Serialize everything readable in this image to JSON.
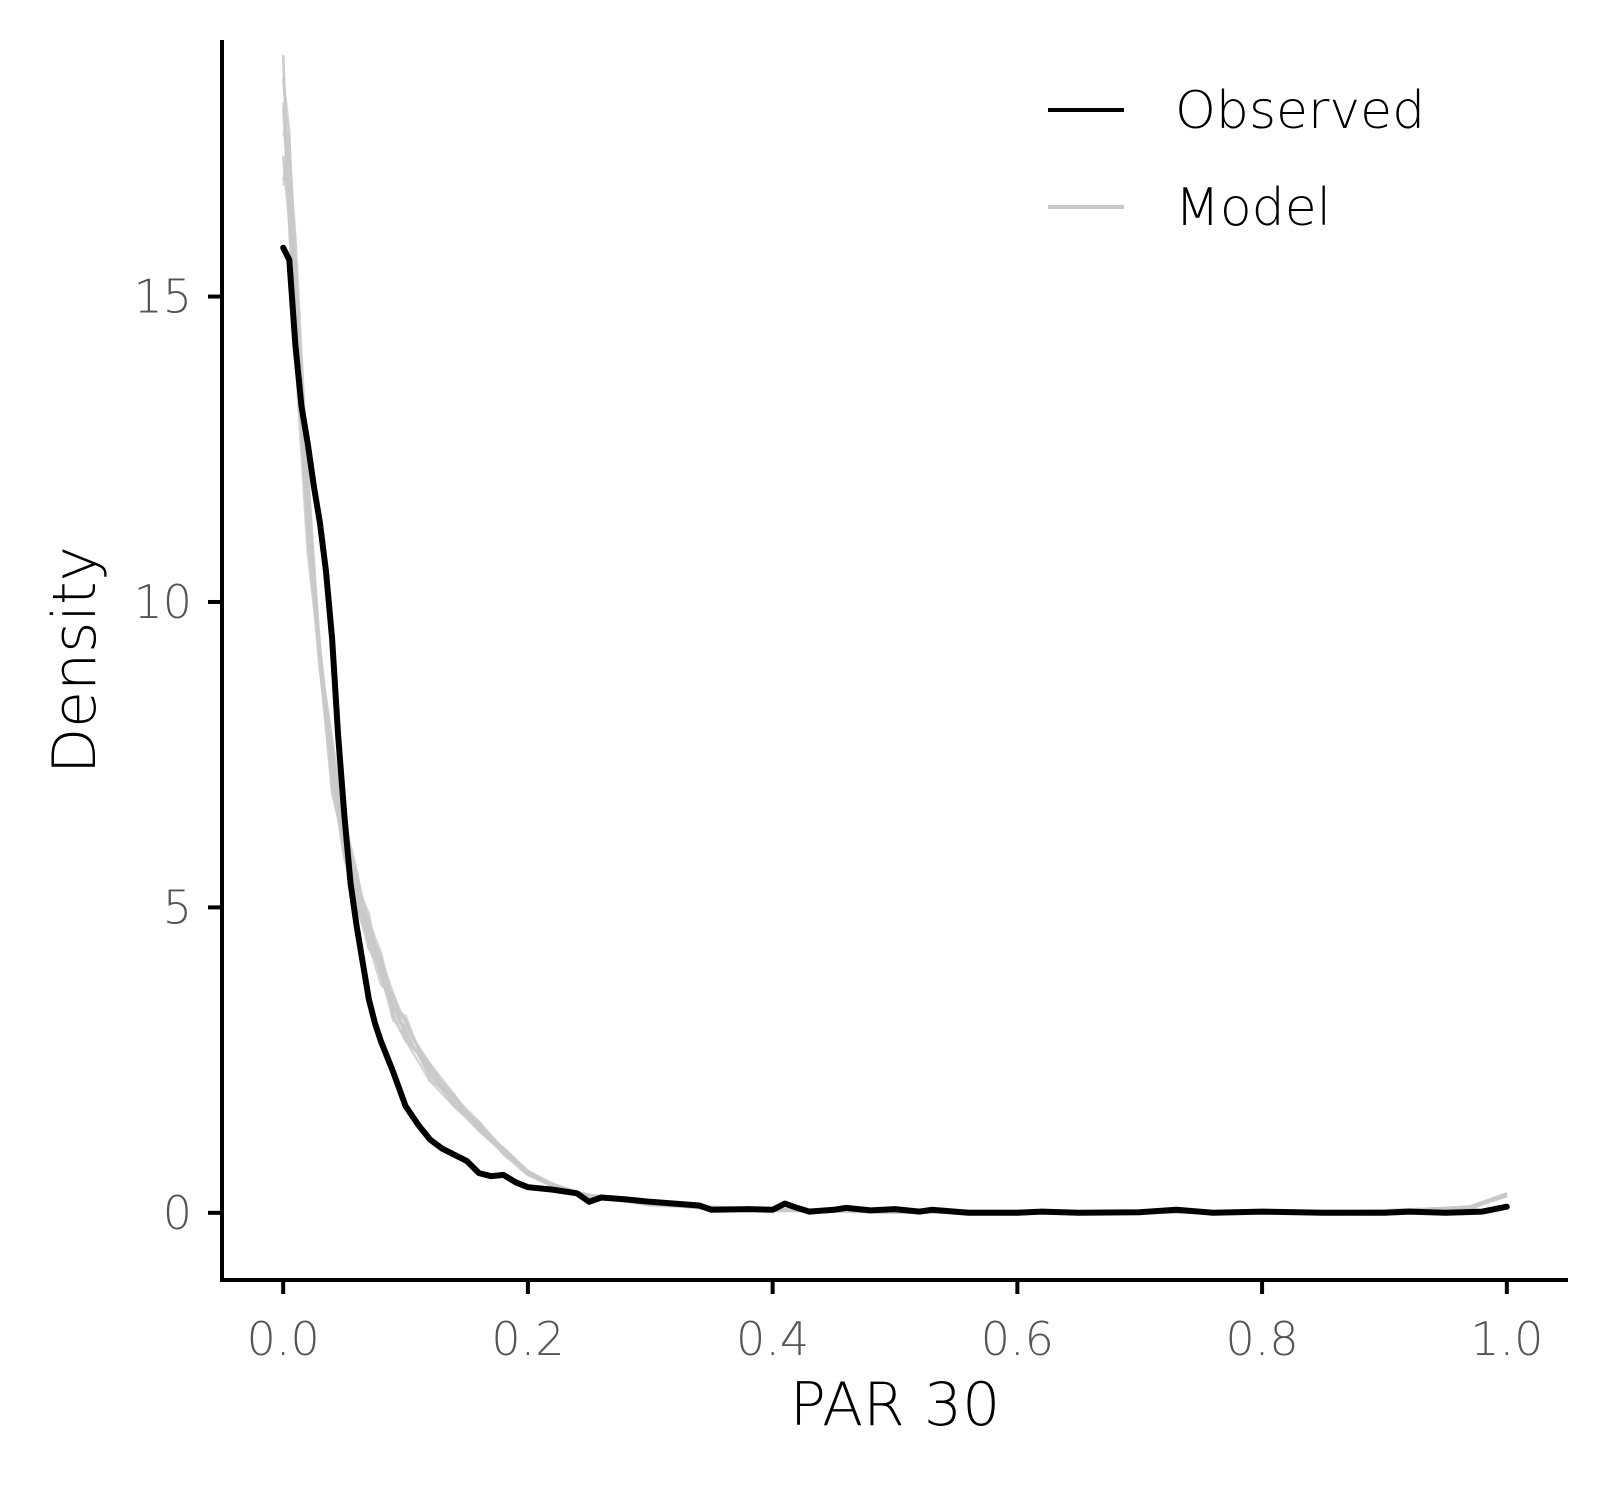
{
  "chart_data": {
    "type": "line",
    "xlabel": "PAR 30",
    "ylabel": "Density",
    "xlim": [
      -0.05,
      1.05
    ],
    "ylim": [
      -1.1,
      19.2
    ],
    "x_ticks": [
      {
        "value": 0.0,
        "label": "0.0"
      },
      {
        "value": 0.2,
        "label": "0.2"
      },
      {
        "value": 0.4,
        "label": "0.4"
      },
      {
        "value": 0.6,
        "label": "0.6"
      },
      {
        "value": 0.8,
        "label": "0.8"
      },
      {
        "value": 1.0,
        "label": "1.0"
      }
    ],
    "y_ticks": [
      {
        "value": 0,
        "label": "0"
      },
      {
        "value": 5,
        "label": "5"
      },
      {
        "value": 10,
        "label": "10"
      },
      {
        "value": 15,
        "label": "15"
      }
    ],
    "grid": false,
    "legend": {
      "position": "top-right",
      "entries": [
        {
          "label": "Observed",
          "color": "#000000"
        },
        {
          "label": "Model",
          "color": "#c8c8c8"
        }
      ]
    },
    "series": [
      {
        "name": "Model",
        "color": "#c8c8c8",
        "replicates": 12,
        "x": [
          0.0,
          0.005,
          0.01,
          0.02,
          0.03,
          0.04,
          0.05,
          0.06,
          0.07,
          0.08,
          0.09,
          0.1,
          0.12,
          0.14,
          0.16,
          0.18,
          0.2,
          0.22,
          0.25,
          0.3,
          0.35,
          0.4,
          0.5,
          0.6,
          0.7,
          0.8,
          0.9,
          0.97,
          1.0
        ],
        "y": [
          18.0,
          16.8,
          15.0,
          11.5,
          9.0,
          7.3,
          6.2,
          5.3,
          4.6,
          4.0,
          3.4,
          3.0,
          2.3,
          1.8,
          1.4,
          1.0,
          0.65,
          0.45,
          0.28,
          0.15,
          0.08,
          0.05,
          0.02,
          0.01,
          0.01,
          0.01,
          0.02,
          0.08,
          0.3
        ]
      },
      {
        "name": "Observed",
        "color": "#000000",
        "x": [
          0.0,
          0.005,
          0.01,
          0.015,
          0.02,
          0.025,
          0.03,
          0.035,
          0.04,
          0.045,
          0.05,
          0.055,
          0.06,
          0.065,
          0.07,
          0.075,
          0.08,
          0.09,
          0.1,
          0.11,
          0.12,
          0.13,
          0.14,
          0.15,
          0.16,
          0.17,
          0.18,
          0.19,
          0.2,
          0.22,
          0.24,
          0.25,
          0.26,
          0.28,
          0.3,
          0.32,
          0.34,
          0.35,
          0.38,
          0.4,
          0.41,
          0.42,
          0.43,
          0.45,
          0.46,
          0.48,
          0.5,
          0.52,
          0.53,
          0.56,
          0.6,
          0.62,
          0.65,
          0.7,
          0.73,
          0.76,
          0.8,
          0.85,
          0.9,
          0.92,
          0.95,
          0.98,
          1.0
        ],
        "y": [
          15.8,
          15.6,
          14.2,
          13.2,
          12.6,
          11.9,
          11.3,
          10.5,
          9.4,
          7.8,
          6.5,
          5.4,
          4.7,
          4.1,
          3.5,
          3.1,
          2.8,
          2.3,
          1.75,
          1.45,
          1.2,
          1.05,
          0.95,
          0.85,
          0.65,
          0.6,
          0.62,
          0.5,
          0.42,
          0.38,
          0.32,
          0.18,
          0.25,
          0.22,
          0.18,
          0.15,
          0.12,
          0.05,
          0.06,
          0.05,
          0.15,
          0.08,
          0.02,
          0.05,
          0.08,
          0.04,
          0.06,
          0.02,
          0.05,
          0.0,
          0.0,
          0.02,
          0.0,
          0.01,
          0.05,
          0.0,
          0.02,
          0.0,
          0.0,
          0.02,
          0.0,
          0.02,
          0.1
        ]
      }
    ]
  }
}
